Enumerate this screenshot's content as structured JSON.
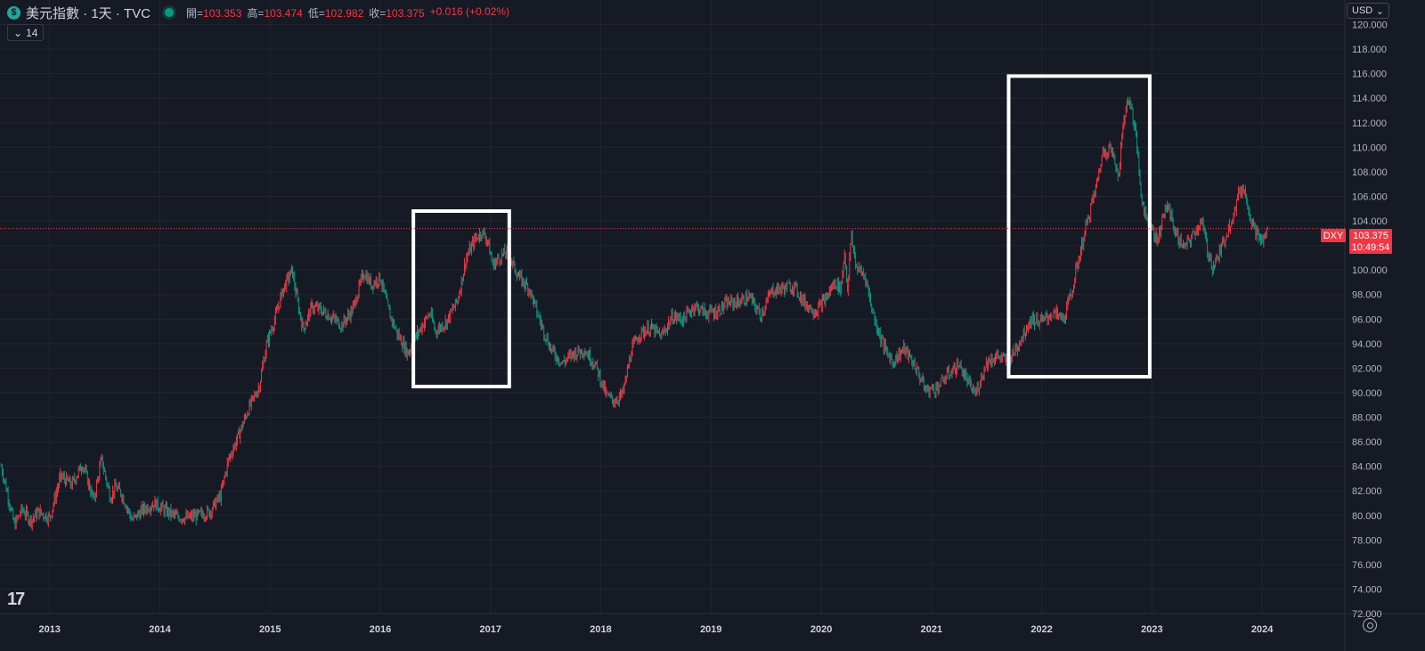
{
  "header": {
    "logo_glyph": "$",
    "symbol_title": "美元指數 · 1天 · TVC",
    "open_label": "開=",
    "open_value": "103.353",
    "high_label": "高=",
    "high_value": "103.474",
    "low_label": "低=",
    "low_value": "102.982",
    "close_label": "收=",
    "close_value": "103.375",
    "change_value": "+0.016 (+0.02%)"
  },
  "indicator_toggle": {
    "chevron": "⌄",
    "label": "14"
  },
  "currency_selector": {
    "label": "USD",
    "chevron": "⌄"
  },
  "price_tag": {
    "symbol": "DXY",
    "price": "103.375",
    "countdown": "10:49:54"
  },
  "icons": {
    "logo": "dollar-icon",
    "live": "live-status-icon",
    "tv": "tradingview-logo",
    "settings": "gear-icon"
  },
  "colors": {
    "background": "#161a25",
    "up": "#f23645",
    "down": "#089981",
    "grid": "#232632",
    "highlight_box": "#ffffff"
  },
  "chart_data": {
    "type": "line",
    "title": "美元指數 · 1天 · TVC",
    "x_unit": "year",
    "xlim": [
      2012.55,
      2024.75
    ],
    "ylim": [
      72,
      122
    ],
    "y_ticks": [
      "72.000",
      "74.000",
      "76.000",
      "78.000",
      "80.000",
      "82.000",
      "84.000",
      "86.000",
      "88.000",
      "90.000",
      "92.000",
      "94.000",
      "96.000",
      "98.000",
      "100.000",
      "102.000",
      "104.000",
      "106.000",
      "108.000",
      "110.000",
      "112.000",
      "114.000",
      "116.000",
      "118.000",
      "120.000"
    ],
    "y_tick_values": [
      72,
      74,
      76,
      78,
      80,
      82,
      84,
      86,
      88,
      90,
      92,
      94,
      96,
      98,
      100,
      102,
      104,
      106,
      108,
      110,
      112,
      114,
      116,
      118,
      120
    ],
    "x_ticks": [
      "2013",
      "2014",
      "2015",
      "2016",
      "2017",
      "2018",
      "2019",
      "2020",
      "2021",
      "2022",
      "2023",
      "2024"
    ],
    "x_tick_values": [
      2013,
      2014,
      2015,
      2016,
      2017,
      2018,
      2019,
      2020,
      2021,
      2022,
      2023,
      2024
    ],
    "last_price": 103.375,
    "series": [
      {
        "x": [
          2012.56,
          2012.6,
          2012.68,
          2012.75,
          2012.83,
          2012.9,
          2013.0,
          2013.1,
          2013.2,
          2013.3,
          2013.4,
          2013.47,
          2013.55,
          2013.6,
          2013.65,
          2013.75,
          2013.85,
          2013.95,
          2014.05,
          2014.15,
          2014.25,
          2014.35,
          2014.45,
          2014.55,
          2014.62,
          2014.7,
          2014.8,
          2014.9,
          2014.97,
          2015.05,
          2015.12,
          2015.2,
          2015.25,
          2015.3,
          2015.38,
          2015.45,
          2015.55,
          2015.65,
          2015.75,
          2015.85,
          2015.92,
          2016.0,
          2016.08,
          2016.15,
          2016.25,
          2016.3,
          2016.38,
          2016.45,
          2016.5,
          2016.6,
          2016.7,
          2016.78,
          2016.86,
          2016.92,
          2016.97,
          2017.02,
          2017.08,
          2017.15,
          2017.25,
          2017.35,
          2017.45,
          2017.55,
          2017.65,
          2017.75,
          2017.85,
          2017.95,
          2018.05,
          2018.12,
          2018.2,
          2018.28,
          2018.35,
          2018.45,
          2018.55,
          2018.65,
          2018.75,
          2018.85,
          2018.95,
          2019.05,
          2019.15,
          2019.25,
          2019.35,
          2019.45,
          2019.55,
          2019.65,
          2019.75,
          2019.85,
          2019.95,
          2020.05,
          2020.12,
          2020.18,
          2020.21,
          2020.24,
          2020.27,
          2020.32,
          2020.4,
          2020.45,
          2020.5,
          2020.58,
          2020.65,
          2020.75,
          2020.85,
          2020.95,
          2021.05,
          2021.15,
          2021.25,
          2021.35,
          2021.4,
          2021.5,
          2021.6,
          2021.7,
          2021.8,
          2021.9,
          2022.0,
          2022.1,
          2022.2,
          2022.28,
          2022.35,
          2022.42,
          2022.5,
          2022.55,
          2022.62,
          2022.7,
          2022.74,
          2022.78,
          2022.82,
          2022.86,
          2022.9,
          2022.95,
          2023.0,
          2023.05,
          2023.1,
          2023.15,
          2023.22,
          2023.3,
          2023.38,
          2023.45,
          2023.5,
          2023.55,
          2023.62,
          2023.7,
          2023.76,
          2023.8,
          2023.85,
          2023.9,
          2023.95,
          2024.0,
          2024.05
        ],
        "y": [
          84,
          82.5,
          79.2,
          80.5,
          79.6,
          80.3,
          79.8,
          83.2,
          82.5,
          84.2,
          81.2,
          84.6,
          81.5,
          82.3,
          81.8,
          79.6,
          80.5,
          81,
          80.4,
          79.9,
          79.8,
          80,
          80.3,
          81.6,
          84.5,
          86.2,
          88.6,
          90.5,
          94,
          96.2,
          98.5,
          100,
          97.3,
          95.2,
          97,
          96.8,
          96.2,
          95.5,
          96.8,
          99.8,
          98.8,
          99.4,
          96.5,
          94.9,
          93.2,
          94.2,
          95.5,
          96.5,
          95,
          95.8,
          97.5,
          101,
          102.5,
          103.1,
          102.5,
          100.4,
          101,
          101.5,
          99.5,
          98.5,
          95.8,
          93.5,
          92.4,
          93.2,
          93.5,
          92.3,
          89.8,
          89.3,
          89.9,
          93.5,
          94.8,
          95.3,
          94.6,
          96.2,
          96,
          97.1,
          96.5,
          96.6,
          97.3,
          97.4,
          97.8,
          96.3,
          98.3,
          98.5,
          98.7,
          97.3,
          96.6,
          97.8,
          99,
          98.5,
          101.5,
          98.3,
          102.8,
          100.2,
          99.5,
          97.2,
          95.5,
          93.5,
          92.5,
          93.6,
          92.2,
          90.2,
          90.4,
          91.5,
          92.3,
          90.5,
          89.9,
          92.5,
          93,
          92.5,
          94.2,
          96,
          95.8,
          96.5,
          96,
          98.5,
          101.5,
          104.2,
          107,
          109.5,
          110,
          107.8,
          112,
          114,
          113,
          110.5,
          106.2,
          104.2,
          103.5,
          102.3,
          104.5,
          105.2,
          102.8,
          101.8,
          103,
          104,
          101.8,
          100.2,
          101.5,
          103.6,
          105.2,
          106.7,
          106.3,
          104,
          103,
          102.2,
          103.375
        ]
      }
    ]
  },
  "highlight_boxes": [
    {
      "x_start": 2016.3,
      "x_end": 2017.17,
      "y_low": 90.5,
      "y_high": 104.8
    },
    {
      "x_start": 2021.7,
      "x_end": 2022.98,
      "y_low": 91.3,
      "y_high": 115.8
    }
  ]
}
